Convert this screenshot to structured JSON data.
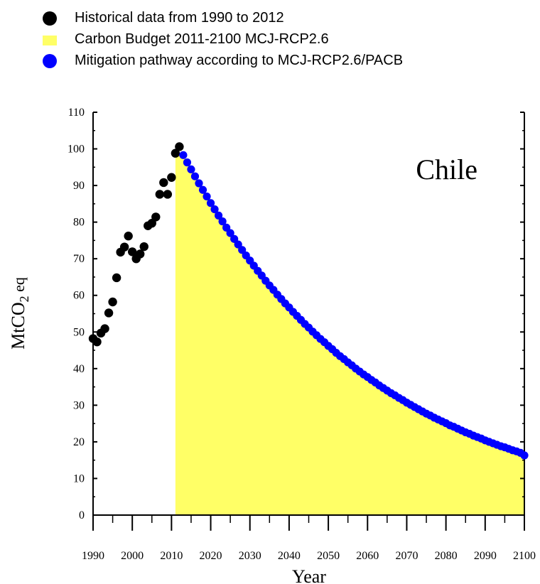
{
  "legend": {
    "items": [
      {
        "label": "Historical data from 1990 to 2012",
        "shape": "dot",
        "color": "#000000"
      },
      {
        "label": "Carbon Budget 2011-2100 MCJ-RCP2.6",
        "shape": "rect",
        "color": "#ffff66"
      },
      {
        "label": "Mitigation pathway according to MCJ-RCP2.6/PACB",
        "shape": "dot",
        "color": "#0000ff"
      }
    ]
  },
  "chart_data": {
    "type": "scatter",
    "annotation": "Chile",
    "xlabel": "Year",
    "ylabel_main": "MtCO",
    "ylabel_sub": "2",
    "ylabel_tail": " eq",
    "xlim": [
      1990,
      2100
    ],
    "ylim": [
      0,
      110
    ],
    "xticks": [
      1990,
      2000,
      2010,
      2020,
      2030,
      2040,
      2050,
      2060,
      2070,
      2080,
      2090,
      2100
    ],
    "yticks": [
      0,
      10,
      20,
      30,
      40,
      50,
      60,
      70,
      80,
      90,
      100,
      110
    ],
    "colors": {
      "historical": "#000000",
      "budget": "#ffff66",
      "pathway": "#0000ff"
    },
    "historical": {
      "name": "Historical data from 1990 to 2012",
      "x": [
        1990,
        1991,
        1992,
        1993,
        1994,
        1995,
        1996,
        1997,
        1998,
        1999,
        2000,
        2001,
        2002,
        2003,
        2004,
        2005,
        2006,
        2007,
        2008,
        2009,
        2010,
        2011,
        2012
      ],
      "y": [
        48.2,
        47.3,
        49.7,
        50.9,
        55.2,
        58.2,
        64.8,
        71.8,
        73.2,
        76.2,
        71.9,
        70.0,
        71.3,
        73.3,
        79.0,
        79.7,
        81.4,
        87.6,
        90.8,
        87.6,
        92.2,
        98.8,
        100.6
      ]
    },
    "budget": {
      "name": "Carbon Budget 2011-2100 MCJ-RCP2.6",
      "start_year": 2011,
      "start_value": 98.8
    },
    "pathway": {
      "name": "Mitigation pathway according to MCJ-RCP2.6/PACB",
      "x": [
        2013,
        2014,
        2015,
        2016,
        2017,
        2018,
        2019,
        2020,
        2021,
        2022,
        2023,
        2024,
        2025,
        2026,
        2027,
        2028,
        2029,
        2030,
        2031,
        2032,
        2033,
        2034,
        2035,
        2036,
        2037,
        2038,
        2039,
        2040,
        2041,
        2042,
        2043,
        2044,
        2045,
        2046,
        2047,
        2048,
        2049,
        2050,
        2051,
        2052,
        2053,
        2054,
        2055,
        2056,
        2057,
        2058,
        2059,
        2060,
        2061,
        2062,
        2063,
        2064,
        2065,
        2066,
        2067,
        2068,
        2069,
        2070,
        2071,
        2072,
        2073,
        2074,
        2075,
        2076,
        2077,
        2078,
        2079,
        2080,
        2081,
        2082,
        2083,
        2084,
        2085,
        2086,
        2087,
        2088,
        2089,
        2090,
        2091,
        2092,
        2093,
        2094,
        2095,
        2096,
        2097,
        2098,
        2099,
        2100
      ],
      "y": [
        98.3,
        96.3,
        94.4,
        92.5,
        90.6,
        88.8,
        87.0,
        85.2,
        83.5,
        81.8,
        80.2,
        78.5,
        77.0,
        75.4,
        73.9,
        72.4,
        70.9,
        69.5,
        68.1,
        66.7,
        65.4,
        64.0,
        62.7,
        61.5,
        60.2,
        59.0,
        57.8,
        56.7,
        55.5,
        54.4,
        53.3,
        52.2,
        51.2,
        50.1,
        49.1,
        48.1,
        47.2,
        46.2,
        45.3,
        44.3,
        43.4,
        42.6,
        41.7,
        40.9,
        40.0,
        39.2,
        38.4,
        37.7,
        36.9,
        36.2,
        35.4,
        34.7,
        34.0,
        33.3,
        32.7,
        32.0,
        31.4,
        30.7,
        30.1,
        29.5,
        28.9,
        28.3,
        27.7,
        27.2,
        26.6,
        26.1,
        25.6,
        25.1,
        24.5,
        24.1,
        23.6,
        23.1,
        22.6,
        22.2,
        21.7,
        21.3,
        20.9,
        20.4,
        20.0,
        19.6,
        19.2,
        18.8,
        18.5,
        18.1,
        17.7,
        17.4,
        17.0,
        16.3
      ]
    }
  }
}
